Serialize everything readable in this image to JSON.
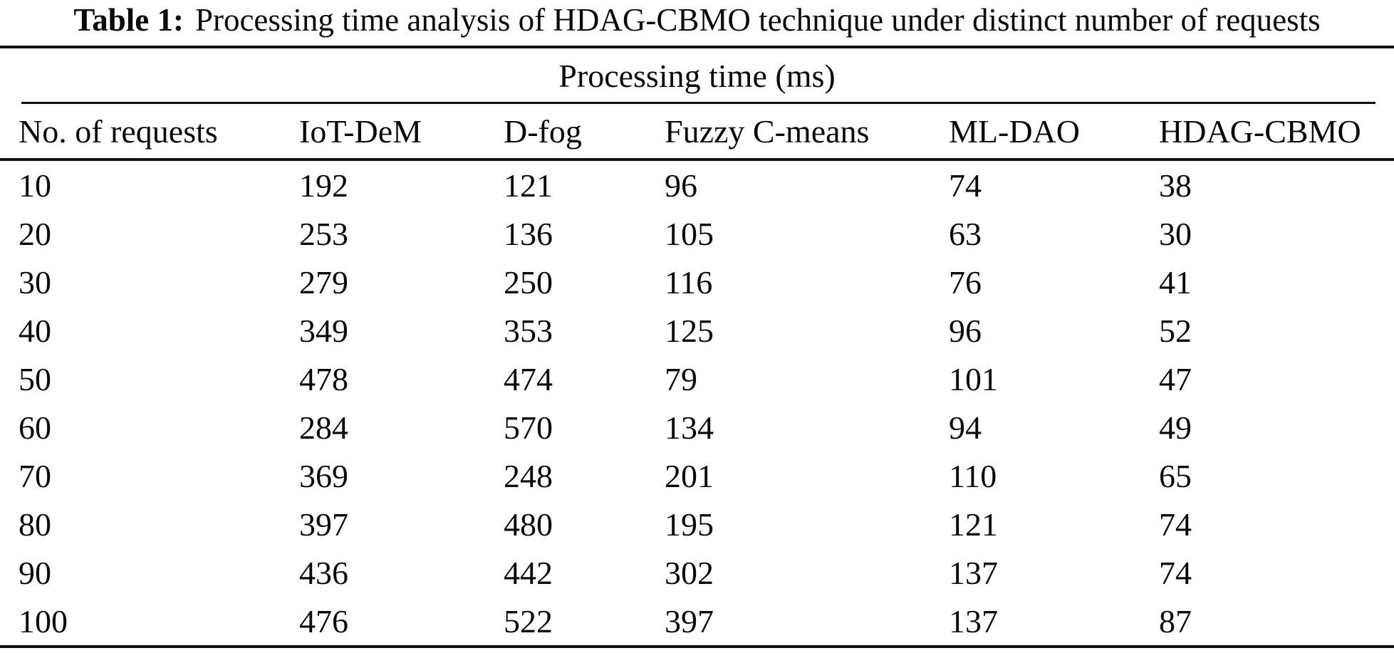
{
  "caption": {
    "label": "Table 1:",
    "text": "Processing time analysis of HDAG-CBMO technique under distinct number of requests"
  },
  "table": {
    "span_header": "Processing time (ms)",
    "columns": [
      "No. of requests",
      "IoT-DeM",
      "D-fog",
      "Fuzzy C-means",
      "ML-DAO",
      "HDAG-CBMO"
    ],
    "rows": [
      [
        "10",
        "192",
        "121",
        "96",
        "74",
        "38"
      ],
      [
        "20",
        "253",
        "136",
        "105",
        "63",
        "30"
      ],
      [
        "30",
        "279",
        "250",
        "116",
        "76",
        "41"
      ],
      [
        "40",
        "349",
        "353",
        "125",
        "96",
        "52"
      ],
      [
        "50",
        "478",
        "474",
        "79",
        "101",
        "47"
      ],
      [
        "60",
        "284",
        "570",
        "134",
        "94",
        "49"
      ],
      [
        "70",
        "369",
        "248",
        "201",
        "110",
        "65"
      ],
      [
        "80",
        "397",
        "480",
        "195",
        "121",
        "74"
      ],
      [
        "90",
        "436",
        "442",
        "302",
        "137",
        "74"
      ],
      [
        "100",
        "476",
        "522",
        "397",
        "137",
        "87"
      ]
    ]
  },
  "colors": {
    "background": "#ffffff",
    "text": "#0a0a0a",
    "rule": "#111111"
  }
}
